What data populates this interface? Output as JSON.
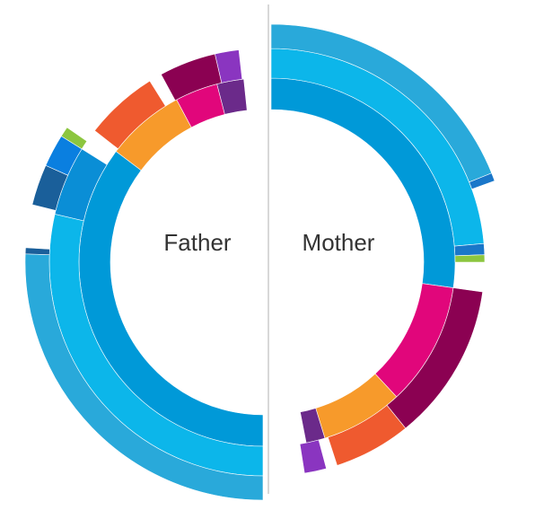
{
  "chart_data": {
    "type": "sunburst",
    "halves": [
      {
        "label": "Father",
        "rings": [
          [
            {
              "value": 127,
              "color": "#0099d8"
            },
            {
              "value": 25,
              "color": "#f79a2b"
            },
            {
              "value": 13.5,
              "color": "#e1067b"
            },
            {
              "value": 8.5,
              "color": "#6b2a8a"
            }
          ],
          [
            {
              "value": 103,
              "color": "#0cb6ea"
            },
            {
              "value": 19,
              "color": "#0a8ed6"
            },
            {
              "value": 6,
              "color": null
            },
            {
              "value": 20,
              "color": "#ef5a2f"
            },
            {
              "value": 3.5,
              "color": null
            },
            {
              "value": 15.5,
              "color": "#8b0152"
            },
            {
              "value": 6.5,
              "color": "#8a35c0"
            }
          ],
          [
            {
              "value": 92,
              "color": "#29a9da"
            },
            {
              "value": 1.5,
              "color": "#1a5f9a"
            },
            {
              "value": 10.5,
              "color": null
            },
            {
              "value": 10,
              "color": "#1a5f9a"
            },
            {
              "value": 8,
              "color": "#0a7fe0"
            },
            {
              "value": 2.5,
              "color": "#8cc63f"
            }
          ]
        ]
      },
      {
        "label": "Mother",
        "rings": [
          [
            {
              "value": 98,
              "color": "#0099d8"
            },
            {
              "value": 39,
              "color": "#e1067b"
            },
            {
              "value": 26,
              "color": "#f79a2b"
            },
            {
              "value": 6,
              "color": "#6b2a8a"
            }
          ],
          [
            {
              "value": 85,
              "color": "#0cb6ea"
            },
            {
              "value": 3,
              "color": "#1a77c9"
            },
            {
              "value": 2,
              "color": "#8cc63f"
            },
            {
              "value": 8,
              "color": null
            },
            {
              "value": 43,
              "color": "#8b0152"
            },
            {
              "value": 21,
              "color": "#ef5a2f"
            },
            {
              "value": 3,
              "color": null
            },
            {
              "value": 6,
              "color": "#8a35c0"
            }
          ],
          [
            {
              "value": 68,
              "color": "#29a9da"
            },
            {
              "value": 2,
              "color": "#1a77c9"
            }
          ]
        ]
      }
    ]
  }
}
